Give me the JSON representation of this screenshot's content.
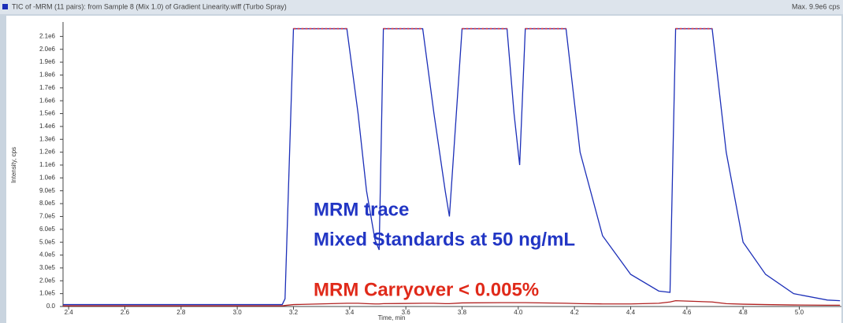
{
  "chart_data": {
    "type": "line",
    "title": "TIC of -MRM (11 pairs): from Sample 8 (Mix 1.0) of Gradient Linearity.wiff (Turbo Spray)",
    "max_label": "Max. 9.9e6 cps",
    "x_label": "Time, min",
    "y_label": "Intensity, cps",
    "x": [
      2.38,
      3.16,
      3.17,
      3.2,
      3.39,
      3.43,
      3.46,
      3.49,
      3.505,
      3.52,
      3.66,
      3.7,
      3.74,
      3.755,
      3.8,
      3.96,
      3.985,
      4.005,
      4.025,
      4.17,
      4.22,
      4.3,
      4.4,
      4.5,
      4.54,
      4.56,
      4.69,
      4.74,
      4.8,
      4.88,
      4.98,
      5.1,
      5.145
    ],
    "series": [
      {
        "color": "#1c2fb8",
        "values": [
          15000,
          15000,
          60000,
          2160000,
          2160000,
          1500000,
          900000,
          520000,
          440000,
          2160000,
          2160000,
          1500000,
          900000,
          700000,
          2160000,
          2160000,
          1500000,
          1100000,
          2160000,
          2160000,
          1200000,
          550000,
          250000,
          120000,
          110000,
          2160000,
          2160000,
          1200000,
          500000,
          250000,
          100000,
          50000,
          45000
        ]
      },
      {
        "color": "#b02020",
        "values": [
          5000,
          5000,
          8000,
          15000,
          25000,
          25000,
          22000,
          20000,
          20000,
          22000,
          25000,
          25000,
          22000,
          22000,
          28000,
          30000,
          30000,
          30000,
          30000,
          25000,
          22000,
          20000,
          20000,
          25000,
          35000,
          45000,
          35000,
          22000,
          18000,
          15000,
          12000,
          10000,
          10000
        ]
      }
    ],
    "saturation_color": "#e03030",
    "xlim": [
      2.38,
      5.15
    ],
    "ylim": [
      0,
      2200000
    ],
    "xticks": [
      2.4,
      2.6,
      2.8,
      {
        "value": 3,
        "label": "3.0"
      },
      3.2,
      3.4,
      3.6,
      3.8,
      {
        "value": 4,
        "label": "4.0"
      },
      4.2,
      4.4,
      4.6,
      4.8,
      {
        "value": 5,
        "label": "5.0"
      }
    ],
    "yticks": [
      {
        "value": 0,
        "label": "0.0"
      },
      {
        "value": 100000,
        "label": "1.0e5"
      },
      {
        "value": 200000,
        "label": "2.0e5"
      },
      {
        "value": 300000,
        "label": "3.0e5"
      },
      {
        "value": 400000,
        "label": "4.0e5"
      },
      {
        "value": 500000,
        "label": "5.0e5"
      },
      {
        "value": 600000,
        "label": "6.0e5"
      },
      {
        "value": 700000,
        "label": "7.0e5"
      },
      {
        "value": 800000,
        "label": "8.0e5"
      },
      {
        "value": 900000,
        "label": "9.0e5"
      },
      {
        "value": 1000000,
        "label": "1.0e6"
      },
      {
        "value": 1100000,
        "label": "1.1e6"
      },
      {
        "value": 1200000,
        "label": "1.2e6"
      },
      {
        "value": 1300000,
        "label": "1.3e6"
      },
      {
        "value": 1400000,
        "label": "1.4e6"
      },
      {
        "value": 1500000,
        "label": "1.5e6"
      },
      {
        "value": 1600000,
        "label": "1.6e6"
      },
      {
        "value": 1700000,
        "label": "1.7e6"
      },
      {
        "value": 1800000,
        "label": "1.8e6"
      },
      {
        "value": 1900000,
        "label": "1.9e6"
      },
      {
        "value": 2000000,
        "label": "2.0e6"
      },
      {
        "value": 2100000,
        "label": "2.1e6"
      }
    ],
    "grid": false,
    "annotations": [
      {
        "text": "MRM trace",
        "color": "#2236c4"
      },
      {
        "text": "Mixed Standards at 50 ng/mL",
        "color": "#2236c4"
      },
      {
        "text": "MRM Carryover < 0.005%",
        "color": "#e02a1a"
      }
    ]
  }
}
